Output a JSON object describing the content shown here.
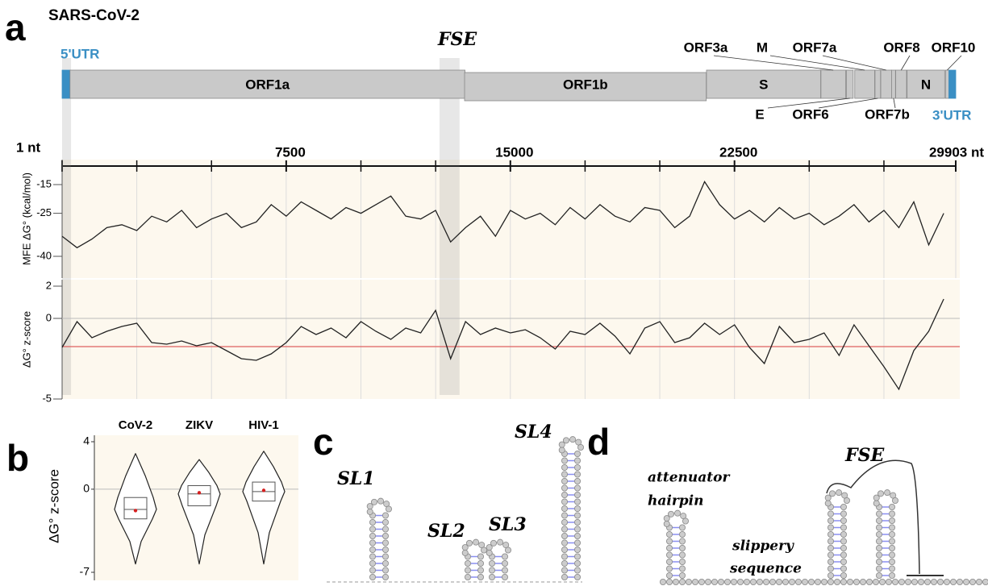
{
  "panel_labels": [
    "a",
    "b",
    "c",
    "d"
  ],
  "genome_map": {
    "title": "SARS-CoV-2",
    "fse_label": "FSE",
    "utr_color": "#3a8fc4",
    "orf_color": "#c9c9c9",
    "segments": [
      {
        "name": "5'UTR",
        "start": 1,
        "end": 265
      },
      {
        "name": "ORF1a",
        "start": 266,
        "end": 13483
      },
      {
        "name": "ORF1b",
        "start": 13468,
        "end": 21555
      },
      {
        "name": "S",
        "start": 21563,
        "end": 25384
      },
      {
        "name": "ORF3a",
        "start": 25393,
        "end": 26220
      },
      {
        "name": "E",
        "start": 26245,
        "end": 26472
      },
      {
        "name": "M",
        "start": 26523,
        "end": 27191
      },
      {
        "name": "ORF6",
        "start": 27202,
        "end": 27387
      },
      {
        "name": "ORF7a",
        "start": 27394,
        "end": 27759
      },
      {
        "name": "ORF7b",
        "start": 27756,
        "end": 27887
      },
      {
        "name": "ORF8",
        "start": 27894,
        "end": 28259
      },
      {
        "name": "N",
        "start": 28274,
        "end": 29533
      },
      {
        "name": "ORF10",
        "start": 29558,
        "end": 29674
      },
      {
        "name": "3'UTR",
        "start": 29675,
        "end": 29903
      }
    ]
  },
  "chart_data": [
    {
      "type": "line",
      "ylabel": "MFE ΔG° (kcal/mol)",
      "xlim": [
        1,
        29903
      ],
      "xticks": [
        {
          "value": 1,
          "label": "1 nt"
        },
        7500,
        15000,
        22500,
        {
          "value": 29903,
          "label": "29903 nt"
        }
      ],
      "xminorticks": [
        2500,
        5000,
        10000,
        12500,
        17500,
        20000,
        25000,
        27500
      ],
      "highlights": [
        [
          1,
          300
        ],
        [
          12630,
          13300
        ]
      ],
      "ylim": [
        -40,
        -15
      ],
      "yticks": [
        -40,
        -25,
        -15
      ],
      "x": [
        1,
        500,
        1000,
        1500,
        2000,
        2500,
        3000,
        3500,
        4000,
        4500,
        5000,
        5500,
        6000,
        6500,
        7000,
        7500,
        8000,
        8500,
        9000,
        9500,
        10000,
        10500,
        11000,
        11500,
        12000,
        12500,
        13000,
        13500,
        14000,
        14500,
        15000,
        15500,
        16000,
        16500,
        17000,
        17500,
        18000,
        18500,
        19000,
        19500,
        20000,
        20500,
        21000,
        21500,
        22000,
        22500,
        23000,
        23500,
        24000,
        24500,
        25000,
        25500,
        26000,
        26500,
        27000,
        27500,
        28000,
        28500,
        29000,
        29500
      ],
      "series": [
        {
          "color": "#222222",
          "values": [
            -33,
            -37,
            -34,
            -30,
            -29,
            -31,
            -26,
            -28,
            -24,
            -30,
            -27,
            -25,
            -30,
            -28,
            -22,
            -26,
            -21,
            -24,
            -27,
            -23,
            -25,
            -22,
            -19,
            -26,
            -27,
            -24,
            -35,
            -30,
            -26,
            -33,
            -24,
            -27,
            -25,
            -29,
            -23,
            -27,
            -22,
            -26,
            -28,
            -23,
            -24,
            -30,
            -26,
            -14,
            -22,
            -27,
            -24,
            -28,
            -23,
            -27,
            -25,
            -29,
            -26,
            -22,
            -28,
            -24,
            -30,
            -21,
            -36,
            -25
          ]
        }
      ]
    },
    {
      "type": "line",
      "ylabel": "ΔG° z-score",
      "xlim": [
        1,
        29903
      ],
      "xgrid": [
        2500,
        5000,
        7500,
        10000,
        12500,
        15000,
        17500,
        20000,
        22500,
        25000,
        27500
      ],
      "ylim": [
        -5,
        2
      ],
      "yticks": [
        -5,
        0,
        2
      ],
      "reference_line": {
        "value": -1.75,
        "color": "#e06060"
      },
      "x": [
        1,
        500,
        1000,
        1500,
        2000,
        2500,
        3000,
        3500,
        4000,
        4500,
        5000,
        5500,
        6000,
        6500,
        7000,
        7500,
        8000,
        8500,
        9000,
        9500,
        10000,
        10500,
        11000,
        11500,
        12000,
        12500,
        13000,
        13500,
        14000,
        14500,
        15000,
        15500,
        16000,
        16500,
        17000,
        17500,
        18000,
        18500,
        19000,
        19500,
        20000,
        20500,
        21000,
        21500,
        22000,
        22500,
        23000,
        23500,
        24000,
        24500,
        25000,
        25500,
        26000,
        26500,
        27000,
        27500,
        28000,
        28500,
        29000,
        29500
      ],
      "series": [
        {
          "color": "#222222",
          "values": [
            -1.8,
            -0.2,
            -1.2,
            -0.8,
            -0.5,
            -0.3,
            -1.5,
            -1.6,
            -1.4,
            -1.7,
            -1.5,
            -2.0,
            -2.5,
            -2.6,
            -2.2,
            -1.5,
            -0.5,
            -1.0,
            -0.6,
            -1.2,
            -0.2,
            -0.8,
            -1.3,
            -0.6,
            -0.9,
            0.5,
            -2.5,
            -0.2,
            -1.0,
            -0.6,
            -0.9,
            -0.7,
            -1.2,
            -1.9,
            -0.8,
            -1.0,
            -0.3,
            -1.1,
            -2.2,
            -0.6,
            -0.2,
            -1.5,
            -1.2,
            -0.3,
            -1.0,
            -0.4,
            -1.8,
            -2.8,
            -0.5,
            -1.5,
            -1.3,
            -0.9,
            -2.3,
            -0.4,
            -1.7,
            -3.0,
            -4.4,
            -2.0,
            -0.8,
            1.2
          ]
        }
      ]
    },
    {
      "type": "violin",
      "ylabel": "ΔG° z-score",
      "categories": [
        "CoV-2",
        "ZIKV",
        "HIV-1"
      ],
      "ylim": [
        -7,
        4
      ],
      "yticks": [
        -7,
        0,
        4
      ],
      "mean_color": "#d62020",
      "max": [
        3.0,
        2.5,
        3.2
      ],
      "q3": [
        -0.7,
        0.3,
        0.6
      ],
      "median": [
        -1.7,
        -0.4,
        -0.2
      ],
      "mean": [
        -1.8,
        -0.3,
        -0.1
      ],
      "q1": [
        -2.5,
        -1.4,
        -1.0
      ],
      "min": [
        -6.3,
        -6.3,
        -6.3
      ]
    }
  ],
  "structures": {
    "c_labels": [
      "SL1",
      "SL2",
      "SL3",
      "SL4"
    ],
    "d_labels": {
      "attenuator": "attenuator",
      "hairpin": "hairpin",
      "slippery": "slippery",
      "sequence": "sequence",
      "fse": "FSE"
    }
  }
}
